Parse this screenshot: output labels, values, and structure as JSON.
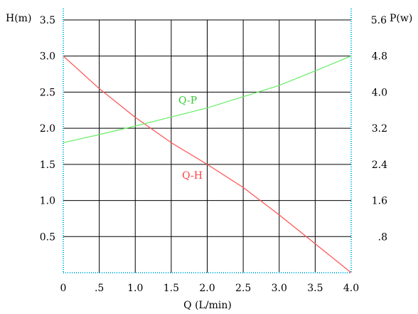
{
  "chart_data": {
    "type": "line",
    "xlabel": "Q (L/min)",
    "ylabel_left": "H(m)",
    "ylabel_right": "P(w)",
    "xlim": [
      0,
      4.0
    ],
    "ylim_left": [
      0,
      3.5
    ],
    "ylim_right": [
      0,
      5.6
    ],
    "x_ticks": [
      0,
      0.5,
      1.0,
      1.5,
      2.0,
      2.5,
      3.0,
      3.5,
      4.0
    ],
    "x_tick_labels": [
      "0",
      ".5",
      "1.0",
      "1.5",
      "2.0",
      "2.5",
      "3.0",
      "3.5",
      "4.0"
    ],
    "y_left_ticks": [
      0.5,
      1.0,
      1.5,
      2.0,
      2.5,
      3.0,
      3.5
    ],
    "y_left_tick_labels": [
      "0.5",
      "1.0",
      "1.5",
      "2.0",
      "2.5",
      "3.0",
      "3.5"
    ],
    "y_right_ticks": [
      0.8,
      1.6,
      2.4,
      3.2,
      4.0,
      4.8,
      5.6
    ],
    "y_right_tick_labels": [
      ".8",
      "1.6",
      "2.4",
      "3.2",
      "4.0",
      "4.8",
      "5.6"
    ],
    "grid": true,
    "series": [
      {
        "name": "Q-H",
        "axis": "left",
        "color": "#ff5050",
        "x": [
          0,
          0.5,
          1.0,
          1.5,
          2.0,
          2.5,
          3.0,
          3.5,
          4.0
        ],
        "y": [
          3.0,
          2.55,
          2.15,
          1.8,
          1.5,
          1.18,
          0.8,
          0.4,
          0.0
        ]
      },
      {
        "name": "Q-P",
        "axis": "right",
        "color": "#66ee66",
        "x": [
          0,
          0.5,
          1.0,
          1.5,
          2.0,
          2.5,
          3.0,
          3.5,
          4.0
        ],
        "y": [
          2.88,
          3.06,
          3.25,
          3.45,
          3.65,
          3.9,
          4.15,
          4.47,
          4.8
        ]
      }
    ],
    "annotations": [
      {
        "series": "Q-P",
        "text": "Q-P",
        "x": 1.6,
        "y_right": 3.75,
        "color": "#33cc33"
      },
      {
        "series": "Q-H",
        "text": "Q-H",
        "x": 1.65,
        "y_left": 1.3,
        "color": "#ff4040"
      }
    ],
    "colors": {
      "grid": "#000000",
      "frame_dotted": "#00b0e0"
    }
  }
}
